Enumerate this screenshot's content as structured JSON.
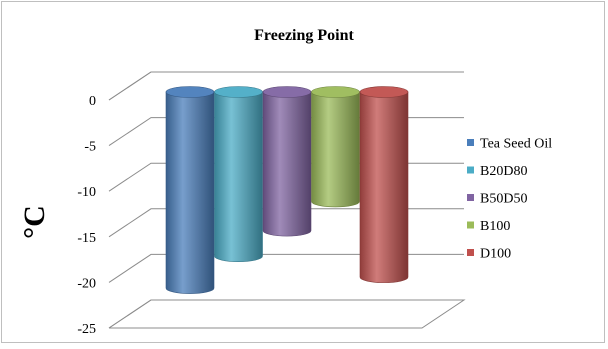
{
  "chart_data": {
    "type": "bar",
    "title": "Freezing Point",
    "ylabel": "°C",
    "ylim": [
      -25,
      0
    ],
    "yticks": [
      0,
      -5,
      -10,
      -15,
      -20,
      -25
    ],
    "grid": true,
    "legend_position": "right",
    "series": [
      {
        "name": "Tea Seed Oil",
        "values": [
          -21.5
        ],
        "color": "#4a7ebb"
      },
      {
        "name": "B20D80",
        "values": [
          -18
        ],
        "color": "#4bacc6"
      },
      {
        "name": "B50D50",
        "values": [
          -15.2
        ],
        "color": "#8064a2"
      },
      {
        "name": "B100",
        "values": [
          -12
        ],
        "color": "#9bbb59"
      },
      {
        "name": "D100",
        "values": [
          -20.3
        ],
        "color": "#c0504d"
      }
    ]
  }
}
